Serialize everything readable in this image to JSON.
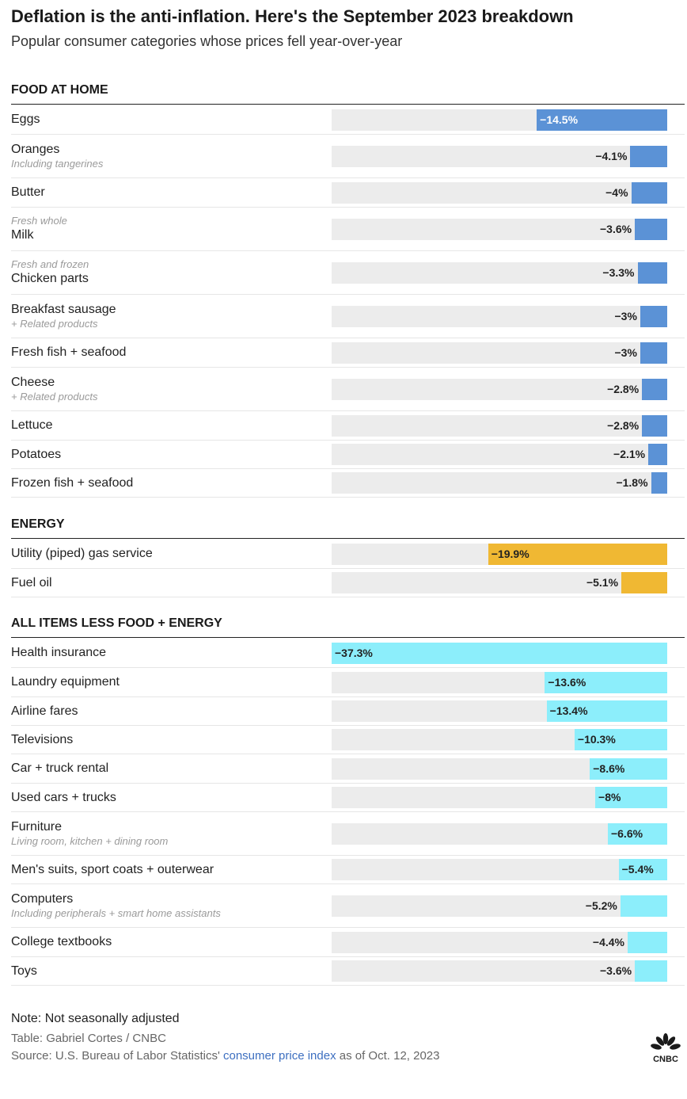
{
  "title": "Deflation is the anti-inflation. Here's the September 2023 breakdown",
  "subtitle": "Popular consumer categories whose prices fell year-over-year",
  "chart_data": {
    "type": "bar",
    "orientation": "horizontal",
    "x_range": [
      0,
      37.3
    ],
    "sections": [
      {
        "name": "FOOD AT HOME",
        "color": "#5b92d6",
        "items": [
          {
            "label": "Eggs",
            "note_above": "",
            "note_below": "",
            "value": -14.5,
            "text": "−14.5%"
          },
          {
            "label": "Oranges",
            "note_above": "",
            "note_below": "Including tangerines",
            "value": -4.1,
            "text": "−4.1%"
          },
          {
            "label": "Butter",
            "note_above": "",
            "note_below": "",
            "value": -4.0,
            "text": "−4%"
          },
          {
            "label": "Milk",
            "note_above": "Fresh whole",
            "note_below": "",
            "value": -3.6,
            "text": "−3.6%"
          },
          {
            "label": "Chicken parts",
            "note_above": "Fresh and frozen",
            "note_below": "",
            "value": -3.3,
            "text": "−3.3%"
          },
          {
            "label": "Breakfast sausage",
            "note_above": "",
            "note_below": "+ Related products",
            "value": -3.0,
            "text": "−3%"
          },
          {
            "label": "Fresh fish + seafood",
            "note_above": "",
            "note_below": "",
            "value": -3.0,
            "text": "−3%"
          },
          {
            "label": "Cheese",
            "note_above": "",
            "note_below": "+ Related products",
            "value": -2.8,
            "text": "−2.8%"
          },
          {
            "label": "Lettuce",
            "note_above": "",
            "note_below": "",
            "value": -2.8,
            "text": "−2.8%"
          },
          {
            "label": "Potatoes",
            "note_above": "",
            "note_below": "",
            "value": -2.1,
            "text": "−2.1%"
          },
          {
            "label": "Frozen fish + seafood",
            "note_above": "",
            "note_below": "",
            "value": -1.8,
            "text": "−1.8%"
          }
        ]
      },
      {
        "name": "ENERGY",
        "color": "#f0b833",
        "items": [
          {
            "label": "Utility (piped) gas service",
            "note_above": "",
            "note_below": "",
            "value": -19.9,
            "text": "−19.9%"
          },
          {
            "label": "Fuel oil",
            "note_above": "",
            "note_below": "",
            "value": -5.1,
            "text": "−5.1%"
          }
        ]
      },
      {
        "name": "ALL ITEMS LESS FOOD + ENERGY",
        "color": "#8ceefb",
        "items": [
          {
            "label": "Health insurance",
            "note_above": "",
            "note_below": "",
            "value": -37.3,
            "text": "−37.3%"
          },
          {
            "label": "Laundry equipment",
            "note_above": "",
            "note_below": "",
            "value": -13.6,
            "text": "−13.6%"
          },
          {
            "label": "Airline fares",
            "note_above": "",
            "note_below": "",
            "value": -13.4,
            "text": "−13.4%"
          },
          {
            "label": "Televisions",
            "note_above": "",
            "note_below": "",
            "value": -10.3,
            "text": "−10.3%"
          },
          {
            "label": "Car + truck rental",
            "note_above": "",
            "note_below": "",
            "value": -8.6,
            "text": "−8.6%"
          },
          {
            "label": "Used cars + trucks",
            "note_above": "",
            "note_below": "",
            "value": -8.0,
            "text": "−8%"
          },
          {
            "label": "Furniture",
            "note_above": "",
            "note_below": "Living room, kitchen + dining room",
            "value": -6.6,
            "text": "−6.6%"
          },
          {
            "label": "Men's suits, sport coats + outerwear",
            "note_above": "",
            "note_below": "",
            "value": -5.4,
            "text": "−5.4%"
          },
          {
            "label": "Computers",
            "note_above": "",
            "note_below": "Including peripherals + smart home assistants",
            "value": -5.2,
            "text": "−5.2%"
          },
          {
            "label": "College textbooks",
            "note_above": "",
            "note_below": "",
            "value": -4.4,
            "text": "−4.4%"
          },
          {
            "label": "Toys",
            "note_above": "",
            "note_below": "",
            "value": -3.6,
            "text": "−3.6%"
          }
        ]
      }
    ]
  },
  "footer": {
    "note": "Note: Not seasonally adjusted",
    "credit": "Table: Gabriel Cortes / CNBC",
    "source_prefix": "Source: U.S. Bureau of Labor Statistics' ",
    "source_link": "consumer price index",
    "source_suffix": " as of Oct. 12, 2023"
  },
  "logo": {
    "name": "CNBC",
    "text": "CNBC"
  }
}
